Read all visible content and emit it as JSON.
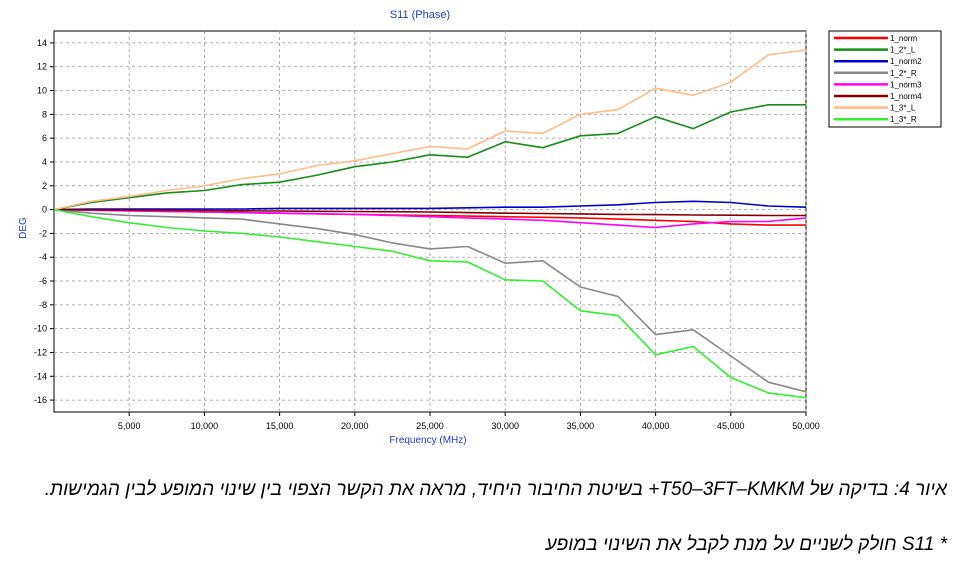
{
  "chart_data": {
    "type": "line",
    "title": "S11 (Phase)",
    "xlabel": "Frequency (MHz)",
    "ylabel": "DEG",
    "xlim": [
      0,
      50000
    ],
    "ylim": [
      -17,
      15
    ],
    "x_ticks": [
      "5,000",
      "10,000",
      "15,000",
      "20,000",
      "25,000",
      "30,000",
      "35,000",
      "40,000",
      "45,000",
      "50,000"
    ],
    "y_ticks": [
      "14",
      "12",
      "10",
      "8",
      "6",
      "4",
      "2",
      "0",
      "-2",
      "-4",
      "-6",
      "-8",
      "-10",
      "-12",
      "-14",
      "-16"
    ],
    "grid": true,
    "legend_position": "top-right",
    "x": [
      0,
      2500,
      5000,
      7500,
      10000,
      12500,
      15000,
      17500,
      20000,
      22500,
      25000,
      27500,
      30000,
      32500,
      35000,
      37500,
      40000,
      42500,
      45000,
      47500,
      50000
    ],
    "series": [
      {
        "name": "1_norm",
        "color": "#ff0000",
        "values": [
          0,
          -0.05,
          -0.1,
          -0.15,
          -0.2,
          -0.25,
          -0.3,
          -0.35,
          -0.4,
          -0.45,
          -0.5,
          -0.55,
          -0.6,
          -0.65,
          -0.7,
          -0.8,
          -0.9,
          -1.0,
          -1.2,
          -1.3,
          -1.3
        ]
      },
      {
        "name": "1_2*_L",
        "color": "#1a8c1a",
        "values": [
          0,
          0.6,
          1.0,
          1.4,
          1.6,
          2.1,
          2.3,
          2.9,
          3.6,
          4.0,
          4.6,
          4.4,
          5.7,
          5.2,
          6.2,
          6.4,
          7.8,
          6.8,
          8.2,
          8.8,
          8.8
        ]
      },
      {
        "name": "1_norm2",
        "color": "#0000cc",
        "values": [
          0,
          0.05,
          0.05,
          0.05,
          0.05,
          0.05,
          0.1,
          0.1,
          0.1,
          0.1,
          0.1,
          0.15,
          0.2,
          0.2,
          0.3,
          0.4,
          0.6,
          0.7,
          0.6,
          0.3,
          0.2
        ]
      },
      {
        "name": "1_2*_R",
        "color": "#888888",
        "values": [
          0,
          -0.3,
          -0.5,
          -0.6,
          -0.7,
          -0.8,
          -1.2,
          -1.6,
          -2.1,
          -2.8,
          -3.3,
          -3.1,
          -4.5,
          -4.3,
          -6.5,
          -7.3,
          -10.5,
          -10.1,
          -12.3,
          -14.5,
          -15.3
        ]
      },
      {
        "name": "1_norm3",
        "color": "#ff00ff",
        "values": [
          0,
          -0.05,
          -0.1,
          -0.15,
          -0.2,
          -0.25,
          -0.3,
          -0.35,
          -0.4,
          -0.5,
          -0.6,
          -0.7,
          -0.8,
          -0.9,
          -1.1,
          -1.3,
          -1.5,
          -1.2,
          -1.0,
          -1.0,
          -0.7
        ]
      },
      {
        "name": "1_norm4",
        "color": "#800000",
        "values": [
          0,
          -0.02,
          -0.04,
          -0.06,
          -0.08,
          -0.1,
          -0.12,
          -0.14,
          -0.16,
          -0.18,
          -0.2,
          -0.25,
          -0.3,
          -0.33,
          -0.36,
          -0.4,
          -0.42,
          -0.45,
          -0.47,
          -0.5,
          -0.5
        ]
      },
      {
        "name": "1_3*_L",
        "color": "#ffbb88",
        "values": [
          0,
          0.7,
          1.1,
          1.6,
          2.0,
          2.6,
          3.0,
          3.7,
          4.1,
          4.7,
          5.3,
          5.1,
          6.6,
          6.4,
          8.0,
          8.4,
          10.2,
          9.6,
          10.7,
          13.0,
          13.4
        ]
      },
      {
        "name": "1_3*_R",
        "color": "#33ee33",
        "values": [
          0,
          -0.6,
          -1.1,
          -1.5,
          -1.8,
          -2.0,
          -2.3,
          -2.7,
          -3.1,
          -3.5,
          -4.3,
          -4.4,
          -5.9,
          -6.0,
          -8.5,
          -8.9,
          -12.2,
          -11.5,
          -14.1,
          -15.4,
          -15.8
        ]
      }
    ]
  },
  "caption": {
    "line1": "איור 4: בדיקה של T50–3FT–KMKM+ בשיטת החיבור היחיד, מראה את הקשר הצפוי בין שינוי המופע לבין הגמישות.",
    "line2": "* S11 חולק לשניים על מנת לקבל את השינוי במופע"
  }
}
